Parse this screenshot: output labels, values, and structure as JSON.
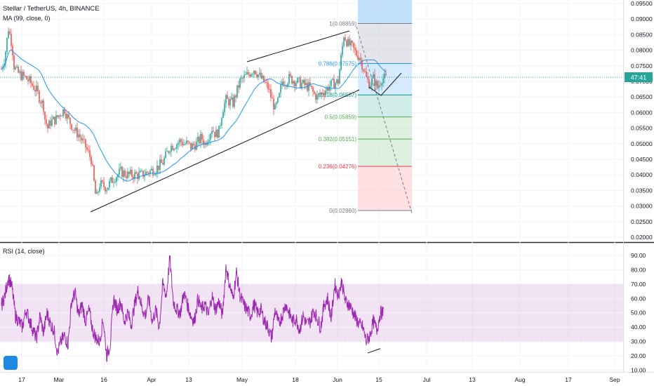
{
  "header": {
    "symbol": "Stellar / TetherUS, 4h, BINANCE",
    "ma_label": "MA (99, close, 0)",
    "rsi_label": "RSI (14, close)"
  },
  "colors": {
    "up": "#26a69a",
    "down": "#ef5350",
    "ma": "#2196f3",
    "rsi": "#9c27b0",
    "price_line": "#26a69a"
  },
  "chart_data": [
    {
      "type": "candlestick",
      "title": "Stellar / TetherUS, 4h, BINANCE",
      "y_scale": "linear",
      "ylim": [
        0.02,
        0.095
      ],
      "y_ticks": [
        0.095,
        0.09,
        0.085,
        0.08,
        0.075,
        0.07,
        0.065,
        0.06,
        0.055,
        0.05,
        0.045,
        0.04,
        0.035,
        0.03,
        0.025,
        0.02
      ],
      "x_ticks": [
        "17",
        "Mar",
        "16",
        "Apr",
        "13",
        "May",
        "18",
        "Jun",
        "15",
        "Jul",
        "13",
        "Aug",
        "17",
        "Sep"
      ],
      "current_price_badge": "47:41",
      "ma_period": 99,
      "price_series": {
        "x": [
          0,
          5,
          10,
          15,
          18,
          22,
          28,
          35,
          40,
          50,
          60,
          62,
          66,
          70,
          78,
          85,
          90,
          95,
          100,
          105,
          110,
          115,
          120,
          128,
          135,
          140,
          150,
          160,
          170,
          180,
          200,
          210,
          220,
          230,
          240,
          250,
          255,
          260,
          265,
          270,
          278,
          285,
          290,
          300,
          305,
          310,
          315,
          320,
          330,
          340,
          350,
          360,
          370,
          380,
          390,
          395,
          400,
          405,
          410,
          420,
          430,
          440,
          445,
          450,
          460,
          470,
          480,
          488,
          494,
          500,
          505,
          510,
          515,
          520,
          525,
          530,
          536,
          542,
          548
        ],
        "y": [
          0.074,
          0.078,
          0.087,
          0.082,
          0.075,
          0.073,
          0.072,
          0.071,
          0.07,
          0.067,
          0.062,
          0.058,
          0.055,
          0.057,
          0.058,
          0.06,
          0.061,
          0.058,
          0.056,
          0.054,
          0.053,
          0.051,
          0.049,
          0.045,
          0.032,
          0.037,
          0.036,
          0.039,
          0.041,
          0.04,
          0.04,
          0.041,
          0.042,
          0.044,
          0.049,
          0.05,
          0.051,
          0.05,
          0.05,
          0.049,
          0.05,
          0.052,
          0.05,
          0.055,
          0.053,
          0.054,
          0.061,
          0.064,
          0.063,
          0.07,
          0.072,
          0.074,
          0.071,
          0.068,
          0.061,
          0.064,
          0.07,
          0.07,
          0.071,
          0.07,
          0.069,
          0.068,
          0.066,
          0.065,
          0.067,
          0.069,
          0.07,
          0.085,
          0.082,
          0.081,
          0.079,
          0.078,
          0.075,
          0.071,
          0.069,
          0.071,
          0.068,
          0.071,
          0.071
        ],
        "x_domain": [
          0,
          548
        ]
      },
      "fibonacci": [
        {
          "label": "1(0.08859)",
          "value": 0.08859,
          "color": "#787b86"
        },
        {
          "label": "0.786(0.07575)",
          "value": 0.07575,
          "color": "#2196f3"
        },
        {
          "label": "0.618(0.06567)",
          "value": 0.06567,
          "color": "#089981"
        },
        {
          "label": "0.5(0.05859)",
          "value": 0.05859,
          "color": "#4caf50"
        },
        {
          "label": "0.382(0.05151)",
          "value": 0.05151,
          "color": "#4caf50"
        },
        {
          "label": "0.236(0.04276)",
          "value": 0.04276,
          "color": "#f23645"
        },
        {
          "label": "0(0.02860)",
          "value": 0.0286,
          "color": "#787b86"
        }
      ]
    },
    {
      "type": "line",
      "title": "RSI (14, close)",
      "ylim": [
        10,
        100
      ],
      "y_ticks": [
        90,
        80,
        70,
        60,
        50,
        40,
        30,
        20,
        10
      ],
      "band": [
        30,
        70
      ],
      "x": [
        0,
        5,
        10,
        15,
        20,
        25,
        30,
        35,
        40,
        45,
        50,
        55,
        60,
        65,
        70,
        75,
        80,
        85,
        90,
        95,
        100,
        105,
        110,
        115,
        120,
        125,
        130,
        135,
        140,
        145,
        150,
        155,
        160,
        165,
        170,
        175,
        180,
        185,
        190,
        195,
        200,
        205,
        210,
        215,
        220,
        225,
        230,
        235,
        240,
        245,
        250,
        255,
        260,
        265,
        270,
        275,
        280,
        285,
        290,
        295,
        300,
        305,
        310,
        315,
        320,
        325,
        330,
        335,
        340,
        345,
        350,
        355,
        360,
        365,
        370,
        375,
        380,
        385,
        390,
        395,
        400,
        405,
        410,
        415,
        420,
        425,
        430,
        435,
        440,
        445,
        450,
        455,
        460,
        465,
        470,
        475,
        480,
        485,
        490,
        495,
        500,
        505,
        510,
        515,
        520,
        525,
        530,
        535,
        540,
        545
      ],
      "values": [
        55,
        62,
        75,
        68,
        48,
        44,
        40,
        52,
        45,
        38,
        32,
        48,
        36,
        50,
        42,
        38,
        22,
        30,
        34,
        28,
        58,
        64,
        48,
        56,
        44,
        52,
        38,
        32,
        30,
        46,
        20,
        28,
        60,
        52,
        58,
        44,
        50,
        42,
        56,
        66,
        54,
        48,
        60,
        44,
        52,
        40,
        70,
        62,
        88,
        58,
        52,
        50,
        64,
        56,
        48,
        44,
        60,
        52,
        56,
        48,
        62,
        52,
        58,
        48,
        82,
        70,
        60,
        78,
        62,
        56,
        52,
        48,
        56,
        50,
        52,
        44,
        40,
        32,
        52,
        42,
        48,
        56,
        50,
        44,
        46,
        38,
        48,
        42,
        44,
        52,
        46,
        40,
        56,
        60,
        46,
        70,
        62,
        72,
        58,
        56,
        52,
        46,
        42,
        40,
        30,
        34,
        44,
        38,
        50,
        50
      ]
    }
  ]
}
